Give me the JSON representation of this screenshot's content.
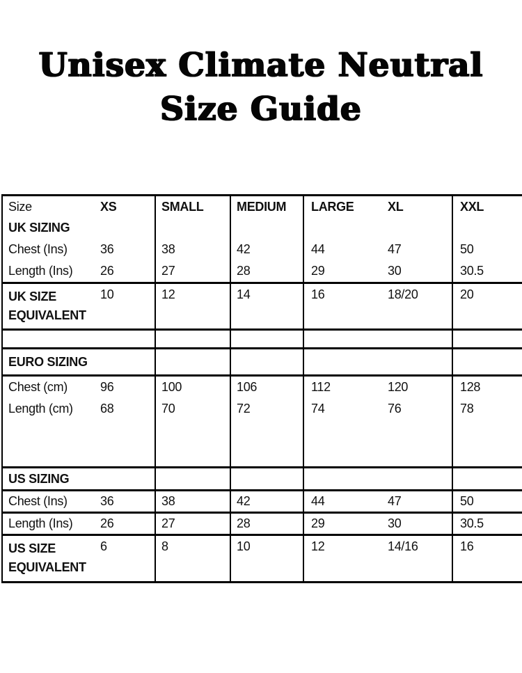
{
  "title": {
    "line1": "Unisex Climate Neutral",
    "line2": "Size Guide"
  },
  "colors": {
    "background": "#ffffff",
    "text": "#111111",
    "border": "#000000"
  },
  "chart_data": {
    "type": "table",
    "title": "Unisex Climate Neutral Size Guide",
    "columns": [
      "Size",
      "XS",
      "SMALL",
      "MEDIUM",
      "LARGE",
      "XL",
      "XXL"
    ],
    "sections": [
      {
        "name": "UK SIZING",
        "rows": [
          {
            "label": "Chest (Ins)",
            "values": [
              "36",
              "38",
              "42",
              "44",
              "47",
              "50"
            ]
          },
          {
            "label": "Length (Ins)",
            "values": [
              "26",
              "27",
              "28",
              "29",
              "30",
              "30.5"
            ]
          },
          {
            "label": "UK SIZE EQUIVALENT",
            "values": [
              "10",
              "12",
              "14",
              "16",
              "18/20",
              "20"
            ]
          }
        ]
      },
      {
        "name": "EURO SIZING",
        "rows": [
          {
            "label": "Chest (cm)",
            "values": [
              "96",
              "100",
              "106",
              "112",
              "120",
              "128"
            ]
          },
          {
            "label": "Length (cm)",
            "values": [
              "68",
              "70",
              "72",
              "74",
              "76",
              "78"
            ]
          }
        ]
      },
      {
        "name": "US SIZING",
        "rows": [
          {
            "label": "Chest (Ins)",
            "values": [
              "36",
              "38",
              "42",
              "44",
              "47",
              "50"
            ]
          },
          {
            "label": "Length (Ins)",
            "values": [
              "26",
              "27",
              "28",
              "29",
              "30",
              "30.5"
            ]
          },
          {
            "label": "US SIZE EQUIVALENT",
            "values": [
              "6",
              "8",
              "10",
              "12",
              "14/16",
              "16"
            ]
          }
        ]
      }
    ]
  },
  "table": {
    "header": {
      "label": "Size",
      "values": [
        "XS",
        "SMALL",
        "MEDIUM",
        "LARGE",
        "XL",
        "XXL"
      ]
    },
    "uk": {
      "section_label": "UK SIZING",
      "chest": {
        "label": "Chest (Ins)",
        "values": [
          "36",
          "38",
          "42",
          "44",
          "47",
          "50"
        ]
      },
      "length": {
        "label": "Length (Ins)",
        "values": [
          "26",
          "27",
          "28",
          "29",
          "30",
          "30.5"
        ]
      },
      "equivalent": {
        "label_line1": "UK SIZE",
        "label_line2": "EQUIVALENT",
        "values": [
          "10",
          "12",
          "14",
          "16",
          "18/20",
          "20"
        ]
      }
    },
    "euro": {
      "section_label": "EURO SIZING",
      "chest": {
        "label": "Chest (cm)",
        "values": [
          "96",
          "100",
          "106",
          "112",
          "120",
          "128"
        ]
      },
      "length": {
        "label": "Length (cm)",
        "values": [
          "68",
          "70",
          "72",
          "74",
          "76",
          "78"
        ]
      }
    },
    "us": {
      "section_label": "US SIZING",
      "chest": {
        "label": "Chest (Ins)",
        "values": [
          "36",
          "38",
          "42",
          "44",
          "47",
          "50"
        ]
      },
      "length": {
        "label": "Length (Ins)",
        "values": [
          "26",
          "27",
          "28",
          "29",
          "30",
          "30.5"
        ]
      },
      "equivalent": {
        "label_line1": "US SIZE",
        "label_line2": "EQUIVALENT",
        "values": [
          "6",
          "8",
          "10",
          "12",
          "14/16",
          "16"
        ]
      }
    }
  }
}
